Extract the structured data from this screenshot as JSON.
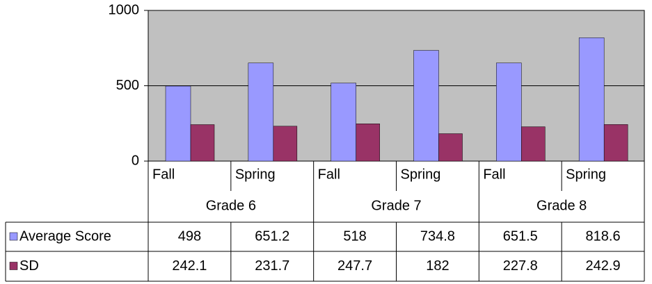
{
  "chart_data": {
    "type": "bar",
    "categories": [
      "Fall",
      "Spring",
      "Fall",
      "Spring",
      "Fall",
      "Spring"
    ],
    "groups": [
      "Grade 6",
      "Grade 7",
      "Grade 8"
    ],
    "series": [
      {
        "name": "Average Score",
        "color": "#9999ff",
        "values": [
          498,
          651.2,
          518,
          734.8,
          651.5,
          818.6
        ]
      },
      {
        "name": "SD",
        "color": "#993366",
        "values": [
          242.1,
          231.7,
          247.7,
          182,
          227.8,
          242.9
        ]
      }
    ],
    "ylim": [
      0,
      1000
    ],
    "yticks": [
      0,
      500,
      1000
    ],
    "grid": true
  }
}
